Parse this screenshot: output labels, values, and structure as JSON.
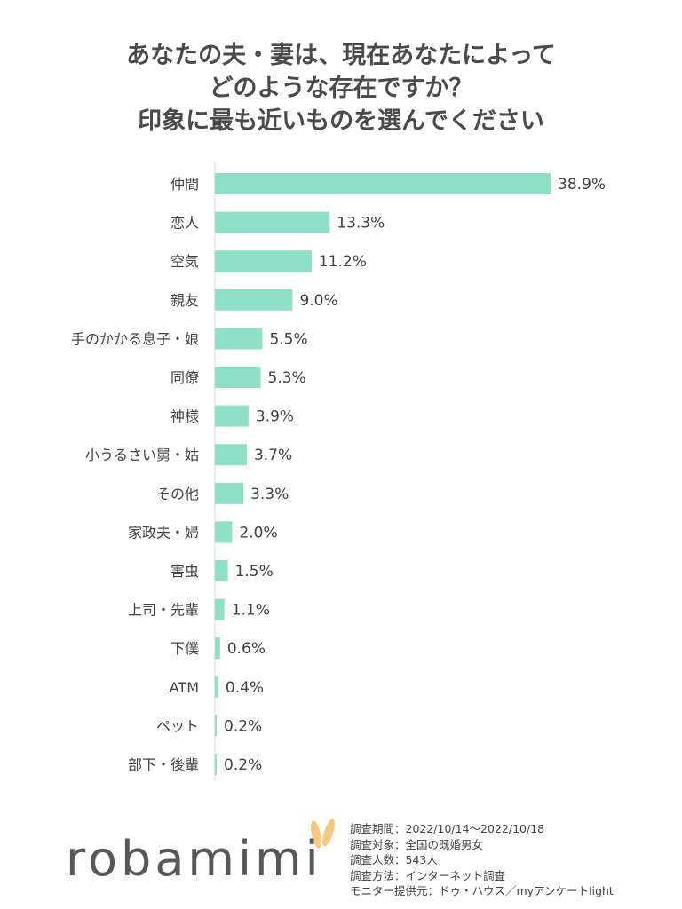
{
  "title": {
    "line1": "あなたの夫・妻は、現在あなたによって",
    "line2": "どのような存在ですか？",
    "line3": "印象に最も近いものを選んでください"
  },
  "chart_data": {
    "type": "bar",
    "orientation": "horizontal",
    "categories": [
      "仲間",
      "恋人",
      "空気",
      "親友",
      "手のかかる息子・娘",
      "同僚",
      "神様",
      "小うるさい舅・姑",
      "その他",
      "家政夫・婦",
      "害虫",
      "上司・先輩",
      "下僕",
      "ATM",
      "ペット",
      "部下・後輩"
    ],
    "values": [
      38.9,
      13.3,
      11.2,
      9.0,
      5.5,
      5.3,
      3.9,
      3.7,
      3.3,
      2.0,
      1.5,
      1.1,
      0.6,
      0.4,
      0.2,
      0.2
    ],
    "value_labels": [
      "38.9%",
      "13.3%",
      "11.2%",
      "9.0%",
      "5.5%",
      "5.3%",
      "3.9%",
      "3.7%",
      "3.3%",
      "2.0%",
      "1.5%",
      "1.1%",
      "0.6%",
      "0.4%",
      "0.2%",
      "0.2%"
    ],
    "bar_color": "#8ee0c6",
    "axis_color": "#d9d9d9",
    "xlim": [
      0,
      40
    ],
    "grid": false,
    "legend": "none"
  },
  "footer": {
    "logo_text": "robamimi",
    "logo_ear_color": "#f7c97e",
    "notes": [
      "調査期間：2022/10/14～2022/10/18",
      "調査対象：全国の既婚男女",
      "調査人数：543人",
      "調査方法：インターネット調査",
      "モニター提供元：ドゥ・ハウス／myアンケートlight"
    ]
  }
}
